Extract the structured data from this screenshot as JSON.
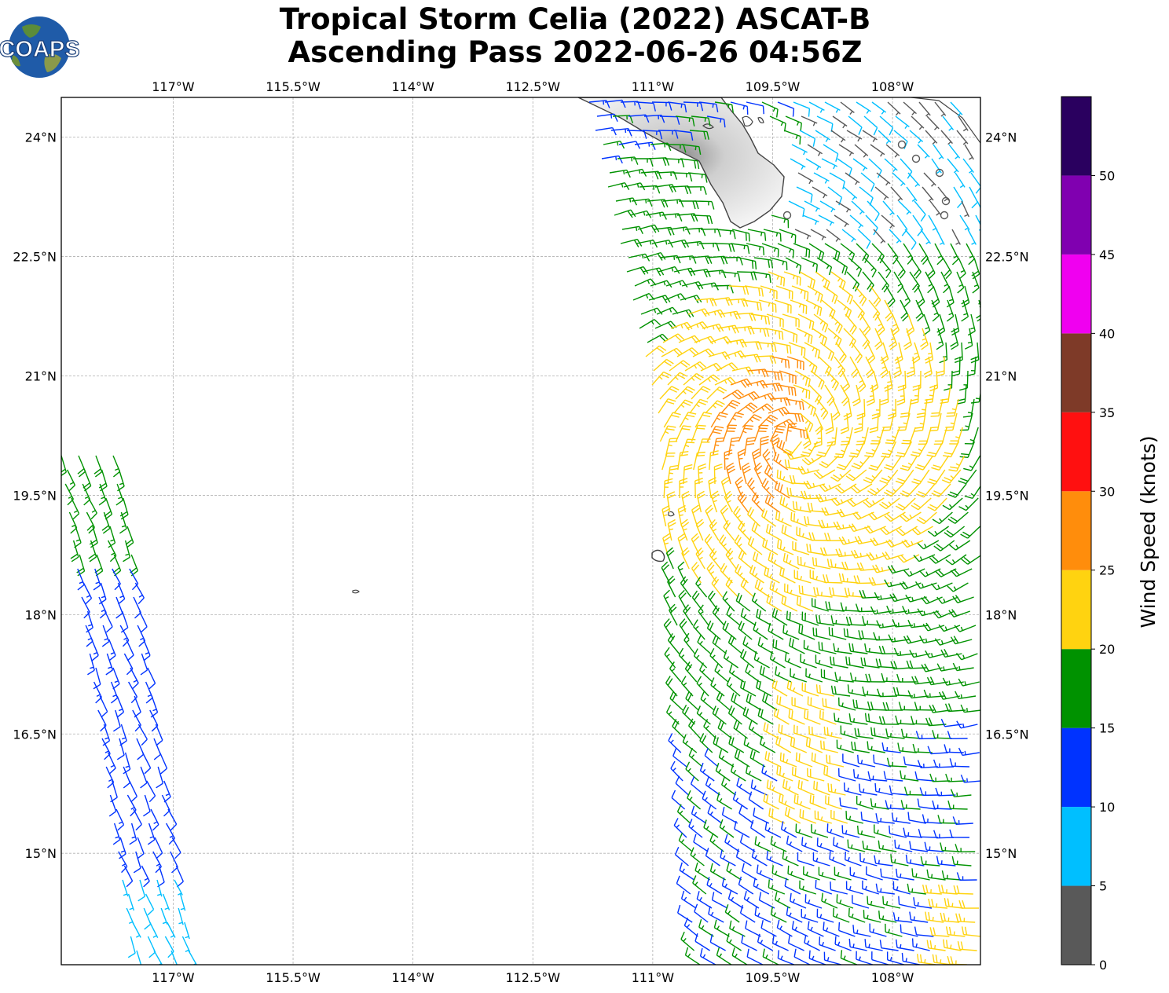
{
  "title": {
    "line1": "Tropical Storm Celia (2022) ASCAT-B",
    "line2": "Ascending Pass 2022-06-26 04:56Z"
  },
  "logo": {
    "text": "COAPS",
    "icon": "globe-logo-icon"
  },
  "map": {
    "lon_range": [
      -118.4,
      -106.9
    ],
    "lat_range": [
      13.6,
      24.5
    ],
    "lon_ticks": [
      "117°W",
      "115.5°W",
      "114°W",
      "112.5°W",
      "111°W",
      "109.5°W",
      "108°W"
    ],
    "lat_ticks": [
      "24°N",
      "22.5°N",
      "21°N",
      "19.5°N",
      "18°N",
      "16.5°N",
      "15°N"
    ],
    "gridlines": true,
    "coastline_color": "#444444"
  },
  "colorbar": {
    "label": "Wind Speed (knots)",
    "tick_labels": [
      "0",
      "5",
      "10",
      "15",
      "20",
      "25",
      "30",
      "35",
      "40",
      "45",
      "50"
    ],
    "bins": [
      {
        "min": 0,
        "max": 5,
        "color": "#595959"
      },
      {
        "min": 5,
        "max": 10,
        "color": "#00bfff"
      },
      {
        "min": 10,
        "max": 15,
        "color": "#0033ff"
      },
      {
        "min": 15,
        "max": 20,
        "color": "#009200"
      },
      {
        "min": 20,
        "max": 25,
        "color": "#ffd310"
      },
      {
        "min": 25,
        "max": 30,
        "color": "#ff8d0c"
      },
      {
        "min": 30,
        "max": 35,
        "color": "#ff1010"
      },
      {
        "min": 35,
        "max": 40,
        "color": "#7e3a28"
      },
      {
        "min": 40,
        "max": 45,
        "color": "#f000f0"
      },
      {
        "min": 45,
        "max": 50,
        "color": "#8000b0"
      },
      {
        "min": 50,
        "max": 55,
        "color": "#2a005f"
      }
    ]
  }
}
